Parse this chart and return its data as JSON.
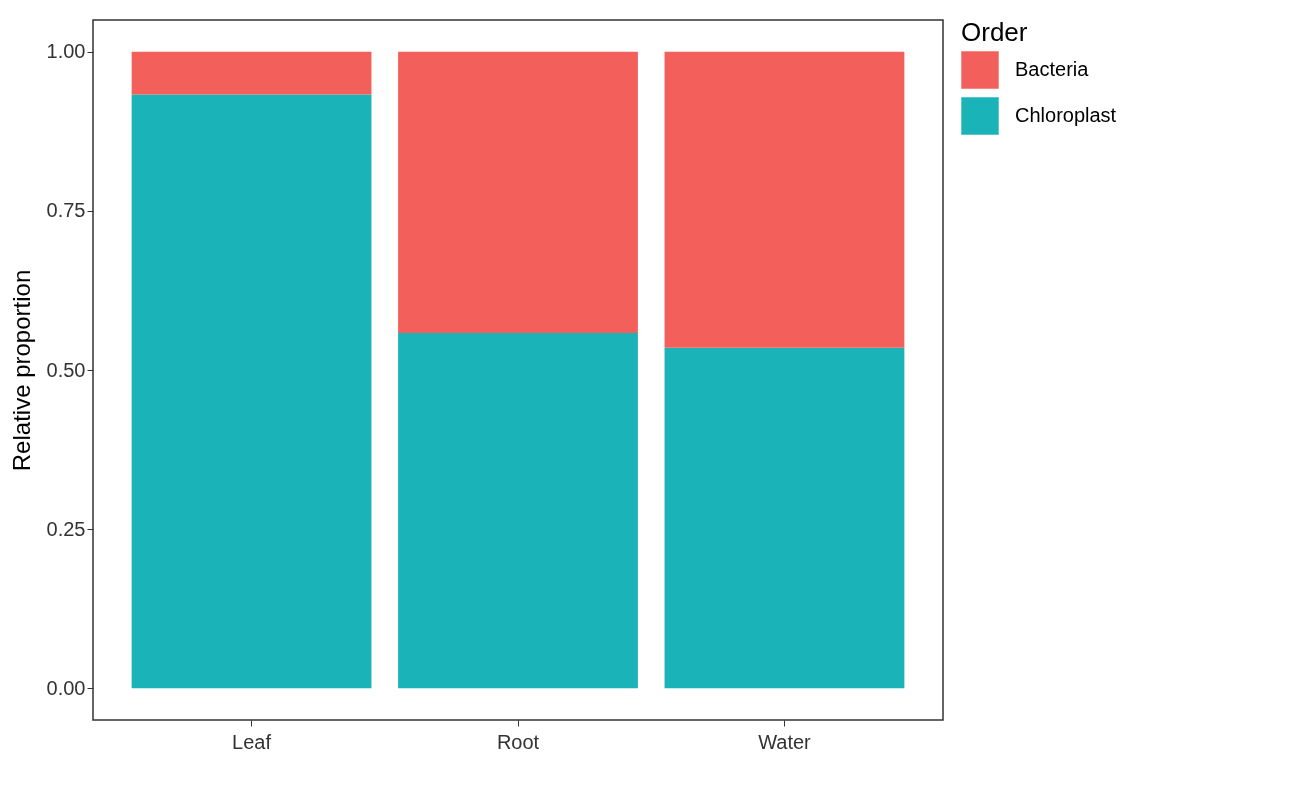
{
  "chart_data": {
    "type": "bar",
    "stacked": true,
    "ylabel": "Relative proportion",
    "legend_title": "Order",
    "categories": [
      "Leaf",
      "Root",
      "Water"
    ],
    "series": [
      {
        "name": "Chloroplast",
        "color": "#1ab3b7",
        "values": [
          0.933,
          0.558,
          0.535
        ]
      },
      {
        "name": "Bacteria",
        "color": "#f35f5a",
        "values": [
          0.067,
          0.442,
          0.465
        ]
      }
    ],
    "ylim": [
      -0.05,
      1.05
    ],
    "yticks": [
      {
        "value": 0,
        "label": "0.00"
      },
      {
        "value": 0.25,
        "label": "0.25"
      },
      {
        "value": 0.5,
        "label": "0.50"
      },
      {
        "value": 0.75,
        "label": "0.75"
      },
      {
        "value": 1,
        "label": "1.00"
      }
    ],
    "grid": false,
    "legend": "right"
  }
}
